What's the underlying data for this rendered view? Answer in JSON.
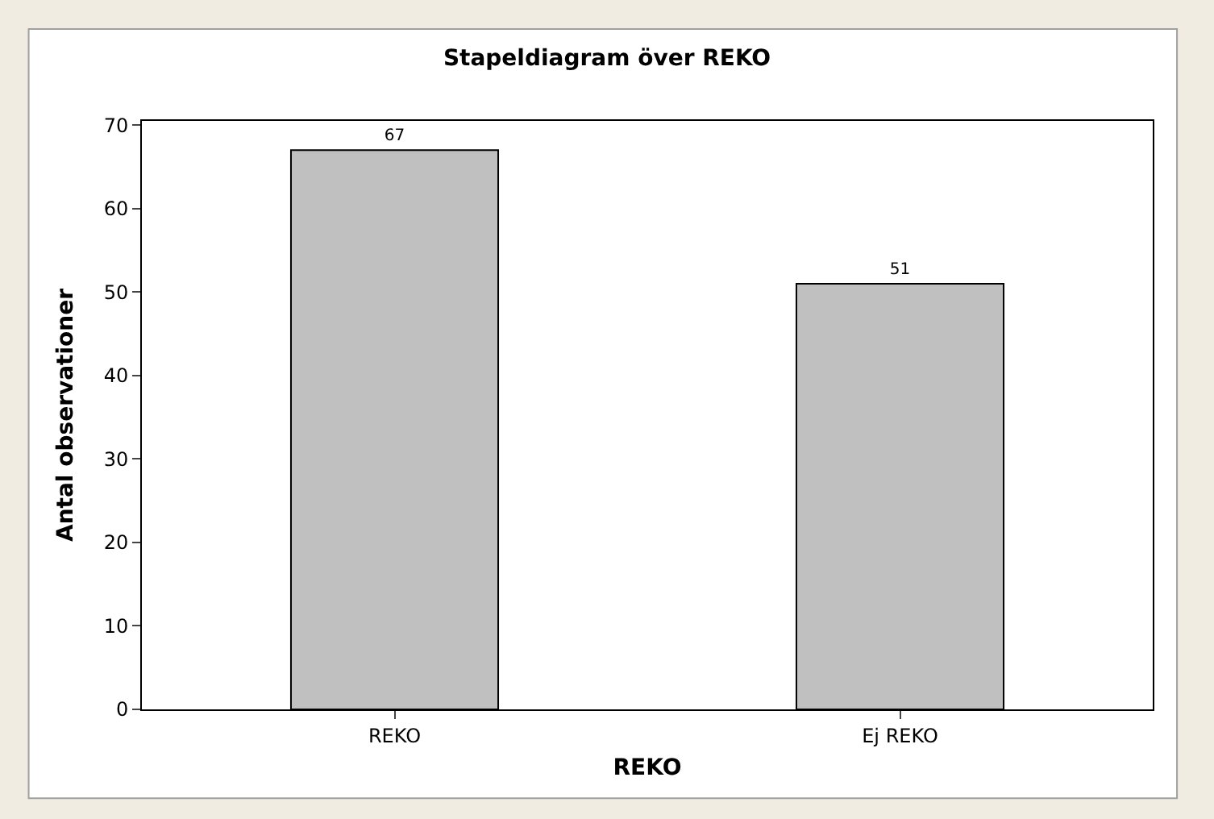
{
  "chart_data": {
    "type": "bar",
    "title": "Stapeldiagram över REKO",
    "xlabel": "REKO",
    "ylabel": "Antal observationer",
    "categories": [
      "REKO",
      "Ej REKO"
    ],
    "values": [
      67,
      51
    ],
    "color": "#c0c0c0",
    "ylim": [
      0,
      70.5
    ],
    "yticks": [
      0,
      10,
      20,
      30,
      40,
      50,
      60,
      70
    ],
    "data_labels": true
  }
}
